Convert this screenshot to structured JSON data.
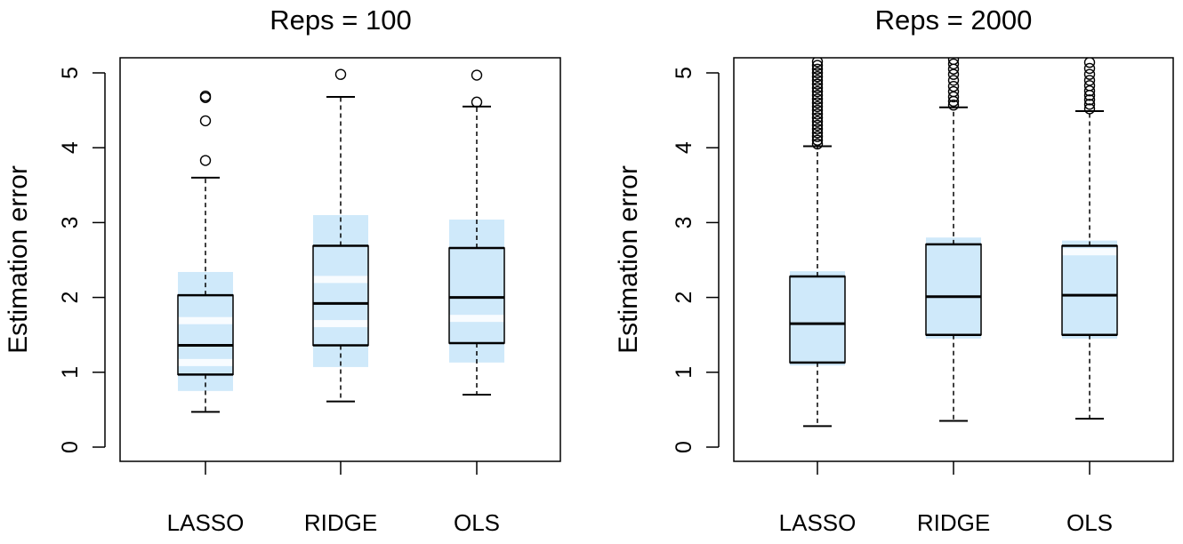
{
  "chart_data": [
    {
      "type": "boxplot",
      "title": "Reps = 100",
      "ylabel": "Estimation error",
      "xlabel": "",
      "ylim": [
        0,
        5
      ],
      "yticks": [
        0,
        1,
        2,
        3,
        4,
        5
      ],
      "grid": false,
      "categories": [
        "LASSO",
        "RIDGE",
        "OLS"
      ],
      "box_color": "#cfe9fa",
      "boxes": [
        {
          "name": "LASSO",
          "whisker_low": 0.47,
          "q1": 0.97,
          "median": 1.36,
          "q3": 2.03,
          "whisker_high": 3.6,
          "outliers": [
            3.83,
            4.36,
            4.67,
            4.69
          ],
          "ci_low": 0.75,
          "ci_high": 2.34,
          "ci_bands": [
            1.13,
            1.69
          ]
        },
        {
          "name": "RIDGE",
          "whisker_low": 0.61,
          "q1": 1.36,
          "median": 1.92,
          "q3": 2.69,
          "whisker_high": 4.68,
          "outliers": [
            4.98
          ],
          "ci_low": 1.07,
          "ci_high": 3.1,
          "ci_bands": [
            1.65,
            2.24
          ]
        },
        {
          "name": "OLS",
          "whisker_low": 0.7,
          "q1": 1.39,
          "median": 2.0,
          "q3": 2.66,
          "whisker_high": 4.55,
          "outliers": [
            4.61,
            4.97
          ],
          "ci_low": 1.13,
          "ci_high": 3.04,
          "ci_bands": [
            1.72
          ]
        }
      ]
    },
    {
      "type": "boxplot",
      "title": "Reps = 2000",
      "ylabel": "Estimation error",
      "xlabel": "",
      "ylim": [
        0,
        5
      ],
      "yticks": [
        0,
        1,
        2,
        3,
        4,
        5
      ],
      "grid": false,
      "categories": [
        "LASSO",
        "RIDGE",
        "OLS"
      ],
      "box_color": "#cfe9fa",
      "boxes": [
        {
          "name": "LASSO",
          "whisker_low": 0.28,
          "q1": 1.13,
          "median": 1.65,
          "q3": 2.28,
          "whisker_high": 4.02,
          "outliers": [
            4.05,
            4.1,
            4.15,
            4.2,
            4.25,
            4.3,
            4.35,
            4.4,
            4.45,
            4.5,
            4.55,
            4.6,
            4.65,
            4.7,
            4.75,
            4.8,
            4.85,
            4.9,
            4.95,
            5.0,
            5.05,
            5.1,
            5.15
          ],
          "ci_low": 1.09,
          "ci_high": 2.35,
          "ci_bands": []
        },
        {
          "name": "RIDGE",
          "whisker_low": 0.35,
          "q1": 1.5,
          "median": 2.01,
          "q3": 2.71,
          "whisker_high": 4.54,
          "outliers": [
            4.57,
            4.62,
            4.68,
            4.75,
            4.82,
            4.9,
            4.98,
            5.05,
            5.12,
            5.18
          ],
          "ci_low": 1.45,
          "ci_high": 2.8,
          "ci_bands": []
        },
        {
          "name": "OLS",
          "whisker_low": 0.38,
          "q1": 1.5,
          "median": 2.03,
          "q3": 2.69,
          "whisker_high": 4.49,
          "outliers": [
            4.52,
            4.58,
            4.64,
            4.7,
            4.76,
            4.83,
            4.9,
            4.98,
            5.06,
            5.14
          ],
          "ci_low": 1.45,
          "ci_high": 2.76,
          "ci_bands": [
            2.61
          ]
        }
      ]
    }
  ]
}
